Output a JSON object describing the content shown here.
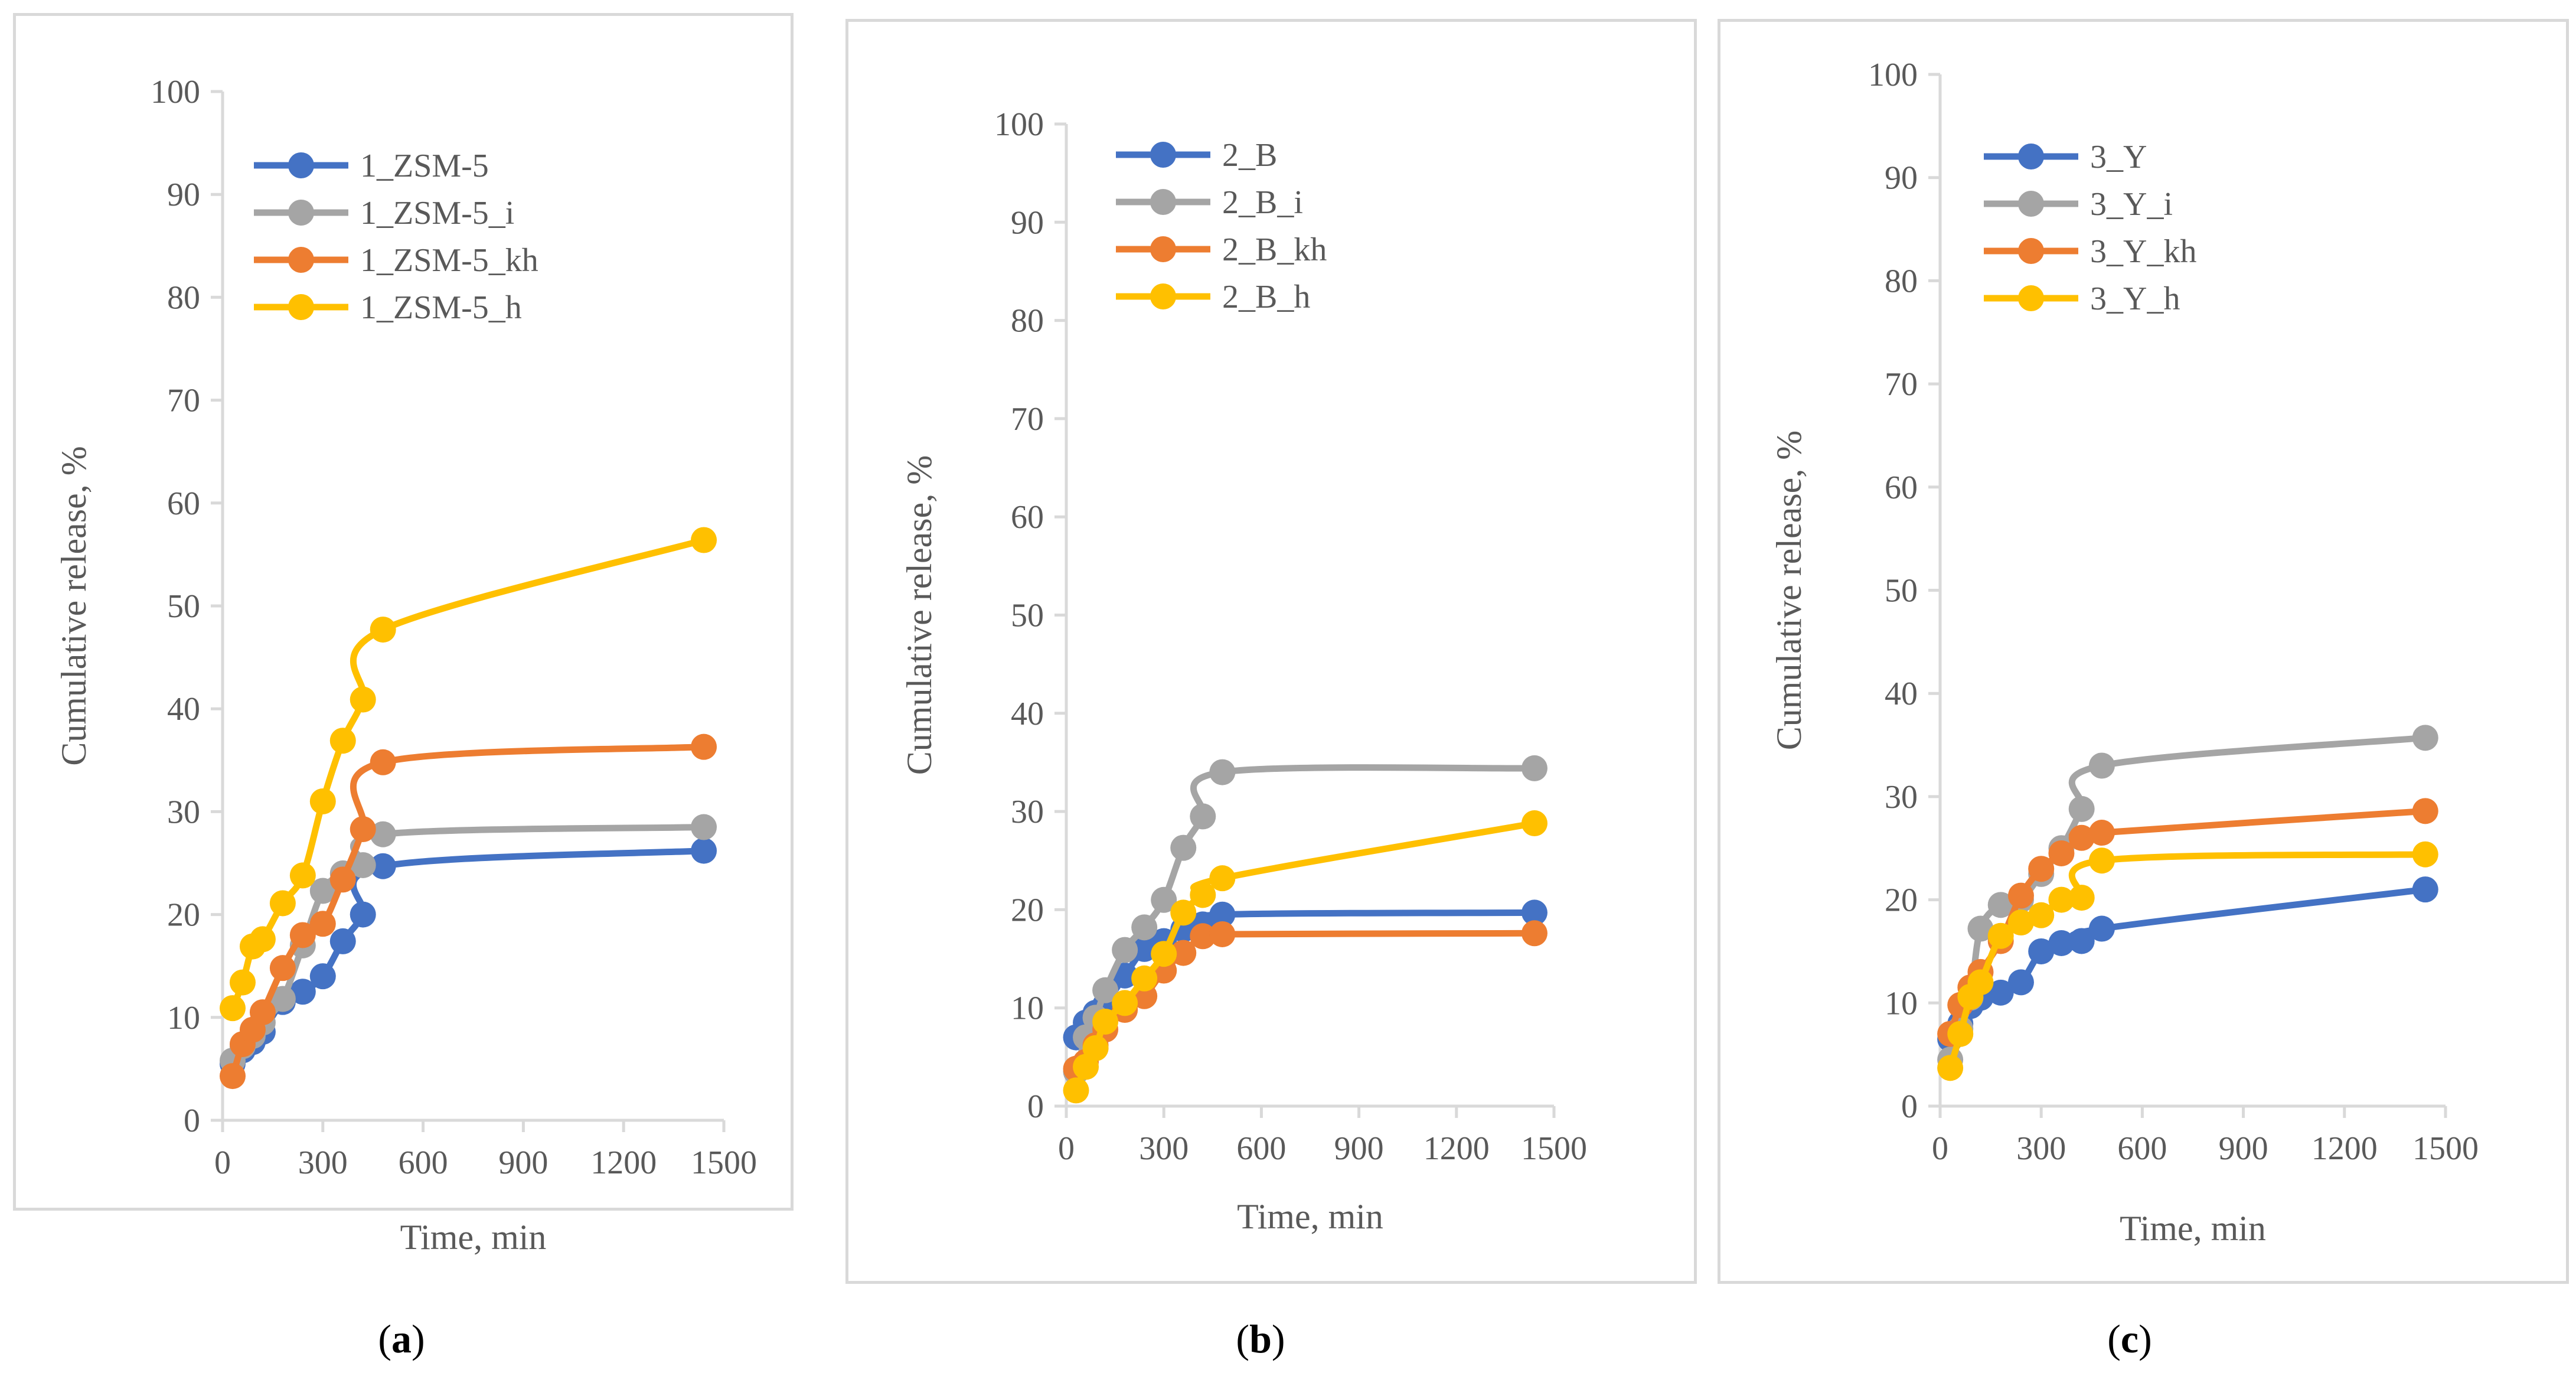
{
  "colors": {
    "blue": "#4472C4",
    "gray": "#A5A5A5",
    "orange": "#ED7D31",
    "yellow": "#FFC000",
    "axis": "#d9d9d9",
    "text": "#595959"
  },
  "chart_data": [
    {
      "type": "line",
      "panel": "a",
      "panel_label": {
        "open": "(",
        "letter": "a",
        "close": ")"
      },
      "title": "",
      "xlabel": "Time, min",
      "ylabel": "Cumulative release, %",
      "xlim": [
        0,
        1500
      ],
      "ylim": [
        0,
        100
      ],
      "xticks": [
        0,
        300,
        600,
        900,
        1200,
        1500
      ],
      "yticks": [
        0,
        10,
        20,
        30,
        40,
        50,
        60,
        70,
        80,
        90,
        100
      ],
      "legend_position": "top-left",
      "x": [
        30,
        60,
        90,
        120,
        180,
        240,
        300,
        360,
        420,
        480,
        1440
      ],
      "series": [
        {
          "name": "1_ZSM-5",
          "color": "#4472C4",
          "values": [
            5.5,
            6.8,
            7.6,
            8.6,
            11.5,
            12.5,
            14.0,
            17.4,
            20.0,
            24.7,
            26.2
          ]
        },
        {
          "name": "1_ZSM-5_i",
          "color": "#A5A5A5",
          "values": [
            5.8,
            7.2,
            8.2,
            9.5,
            11.8,
            17.0,
            22.3,
            24.0,
            24.8,
            27.8,
            28.5
          ]
        },
        {
          "name": "1_ZSM-5_kh",
          "color": "#ED7D31",
          "values": [
            4.3,
            7.4,
            8.8,
            10.5,
            14.8,
            18.0,
            19.1,
            23.4,
            28.3,
            34.8,
            36.3
          ]
        },
        {
          "name": "1_ZSM-5_h",
          "color": "#FFC000",
          "values": [
            10.9,
            13.4,
            16.9,
            17.6,
            21.1,
            23.8,
            31.0,
            36.9,
            40.9,
            47.7,
            56.4
          ]
        }
      ]
    },
    {
      "type": "line",
      "panel": "b",
      "panel_label": {
        "open": "(",
        "letter": "b",
        "close": ")"
      },
      "title": "",
      "xlabel": "Time, min",
      "ylabel": "Cumulative release, %",
      "xlim": [
        0,
        1500
      ],
      "ylim": [
        0,
        100
      ],
      "xticks": [
        0,
        300,
        600,
        900,
        1200,
        1500
      ],
      "yticks": [
        0,
        10,
        20,
        30,
        40,
        50,
        60,
        70,
        80,
        90,
        100
      ],
      "legend_position": "top-left",
      "x": [
        30,
        60,
        90,
        120,
        180,
        240,
        300,
        360,
        420,
        480,
        1440
      ],
      "series": [
        {
          "name": "2_B",
          "color": "#4472C4",
          "values": [
            7.0,
            8.5,
            9.5,
            10.3,
            13.3,
            16.0,
            16.8,
            18.0,
            18.5,
            19.5,
            19.7
          ]
        },
        {
          "name": "2_B_i",
          "color": "#A5A5A5",
          "values": [
            3.5,
            7.0,
            9.0,
            11.8,
            15.9,
            18.2,
            21.0,
            26.3,
            29.5,
            34.0,
            34.4
          ]
        },
        {
          "name": "2_B_kh",
          "color": "#ED7D31",
          "values": [
            3.8,
            4.5,
            6.2,
            7.8,
            9.8,
            11.2,
            13.8,
            15.6,
            17.3,
            17.5,
            17.6
          ]
        },
        {
          "name": "2_B_h",
          "color": "#FFC000",
          "values": [
            1.6,
            4.0,
            5.9,
            8.6,
            10.5,
            13.0,
            15.5,
            19.7,
            21.5,
            23.2,
            28.8
          ]
        }
      ]
    },
    {
      "type": "line",
      "panel": "c",
      "panel_label": {
        "open": "(",
        "letter": "c",
        "close": ")"
      },
      "title": "",
      "xlabel": "Time, min",
      "ylabel": "Cumulative release, %",
      "xlim": [
        0,
        1500
      ],
      "ylim": [
        0,
        100
      ],
      "xticks": [
        0,
        300,
        600,
        900,
        1200,
        1500
      ],
      "yticks": [
        0,
        10,
        20,
        30,
        40,
        50,
        60,
        70,
        80,
        90,
        100
      ],
      "legend_position": "top-left",
      "x": [
        30,
        60,
        90,
        120,
        180,
        240,
        300,
        360,
        420,
        480,
        1440
      ],
      "series": [
        {
          "name": "3_Y",
          "color": "#4472C4",
          "values": [
            6.5,
            8.0,
            9.7,
            10.5,
            11.0,
            12.0,
            15.0,
            15.8,
            16.0,
            17.2,
            21.0
          ]
        },
        {
          "name": "3_Y_i",
          "color": "#A5A5A5",
          "values": [
            4.5,
            7.5,
            10.5,
            17.2,
            19.5,
            20.0,
            22.5,
            25.0,
            28.8,
            33.0,
            35.7
          ]
        },
        {
          "name": "3_Y_kh",
          "color": "#ED7D31",
          "values": [
            7.0,
            9.8,
            11.5,
            13.0,
            16.0,
            20.4,
            23.0,
            24.5,
            26.0,
            26.5,
            28.6
          ]
        },
        {
          "name": "3_Y_h",
          "color": "#FFC000",
          "values": [
            3.7,
            7.0,
            10.6,
            12.0,
            16.5,
            17.8,
            18.5,
            20.0,
            20.2,
            23.8,
            24.4
          ]
        }
      ]
    }
  ]
}
